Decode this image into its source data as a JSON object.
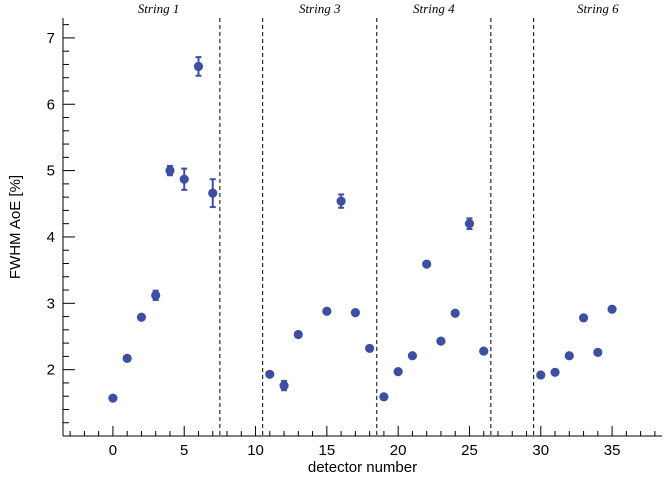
{
  "chart_data": {
    "type": "scatter",
    "title": "",
    "xlabel": "detector number",
    "ylabel": "FWHM AoE [%]",
    "xlim": [
      -3.5,
      38.5
    ],
    "ylim": [
      1.0,
      7.3
    ],
    "x_ticks": [
      0,
      5,
      10,
      15,
      20,
      25,
      30,
      35
    ],
    "y_ticks": [
      2,
      3,
      4,
      5,
      6,
      7
    ],
    "grid": false,
    "dividers": [
      7.5,
      10.5,
      18.5,
      26.5,
      29.5
    ],
    "strings": [
      {
        "label": "String 1",
        "x": 3.2
      },
      {
        "label": "String 3",
        "x": 14.5
      },
      {
        "label": "String 4",
        "x": 22.5
      },
      {
        "label": "String 6",
        "x": 34.0
      }
    ],
    "series": [
      {
        "points": [
          {
            "x": 0,
            "y": 1.57,
            "err": 0.0
          },
          {
            "x": 1,
            "y": 2.17,
            "err": 0.0
          },
          {
            "x": 2,
            "y": 2.79,
            "err": 0.0
          },
          {
            "x": 3,
            "y": 3.12,
            "err": 0.07
          },
          {
            "x": 4,
            "y": 5.0,
            "err": 0.07
          },
          {
            "x": 5,
            "y": 4.87,
            "err": 0.16
          },
          {
            "x": 6,
            "y": 6.57,
            "err": 0.14
          },
          {
            "x": 7,
            "y": 4.66,
            "err": 0.21
          },
          {
            "x": 11,
            "y": 1.93,
            "err": 0.0
          },
          {
            "x": 12,
            "y": 1.76,
            "err": 0.07
          },
          {
            "x": 13,
            "y": 2.53,
            "err": 0.0
          },
          {
            "x": 15,
            "y": 2.88,
            "err": 0.0
          },
          {
            "x": 16,
            "y": 4.54,
            "err": 0.1
          },
          {
            "x": 17,
            "y": 2.86,
            "err": 0.0
          },
          {
            "x": 18,
            "y": 2.32,
            "err": 0.0
          },
          {
            "x": 19,
            "y": 1.59,
            "err": 0.0
          },
          {
            "x": 20,
            "y": 1.97,
            "err": 0.0
          },
          {
            "x": 21,
            "y": 2.21,
            "err": 0.0
          },
          {
            "x": 22,
            "y": 3.59,
            "err": 0.0
          },
          {
            "x": 23,
            "y": 2.43,
            "err": 0.0
          },
          {
            "x": 24,
            "y": 2.85,
            "err": 0.0
          },
          {
            "x": 25,
            "y": 4.2,
            "err": 0.08
          },
          {
            "x": 26,
            "y": 2.28,
            "err": 0.0
          },
          {
            "x": 30,
            "y": 1.92,
            "err": 0.0
          },
          {
            "x": 31,
            "y": 1.96,
            "err": 0.0
          },
          {
            "x": 32,
            "y": 2.21,
            "err": 0.0
          },
          {
            "x": 33,
            "y": 2.78,
            "err": 0.0
          },
          {
            "x": 34,
            "y": 2.26,
            "err": 0.0
          },
          {
            "x": 35,
            "y": 2.91,
            "err": 0.0
          }
        ]
      }
    ],
    "colors": {
      "marker": "#3c4fa3",
      "axis": "#000000"
    }
  }
}
